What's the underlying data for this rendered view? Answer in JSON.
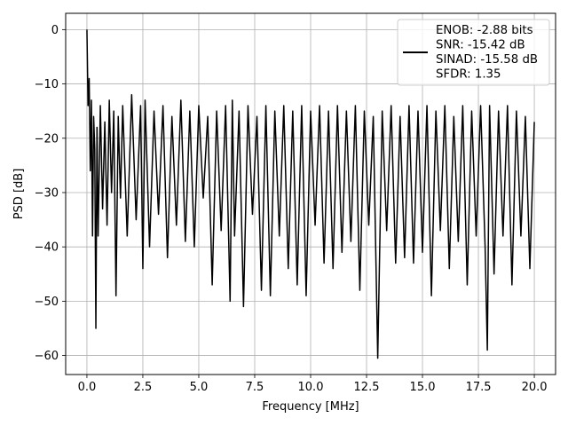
{
  "chart_data": {
    "type": "line",
    "title": "",
    "xlabel": "Frequency [MHz]",
    "ylabel": "PSD [dB]",
    "xlim": [
      -0.95,
      20.95
    ],
    "ylim": [
      -63.5,
      3.0
    ],
    "xticks": [
      0.0,
      2.5,
      5.0,
      7.5,
      10.0,
      12.5,
      15.0,
      17.5,
      20.0
    ],
    "xtick_labels": [
      "0.0",
      "2.5",
      "5.0",
      "7.5",
      "10.0",
      "12.5",
      "15.0",
      "17.5",
      "20.0"
    ],
    "yticks": [
      0,
      -10,
      -20,
      -30,
      -40,
      -50,
      -60
    ],
    "ytick_labels": [
      "0",
      "−10",
      "−20",
      "−30",
      "−40",
      "−50",
      "−60"
    ],
    "grid": true,
    "legend_position": "top-right",
    "series_color": "#000000",
    "series": [
      {
        "name": "ENOB: -2.88 bits\nSNR: -15.42 dB\nSINAD: -15.58 dB\nSFDR: 1.35",
        "legend_lines": [
          "ENOB: -2.88 bits",
          "SNR: -15.42 dB",
          "SINAD: -15.58 dB",
          "SFDR: 1.35"
        ],
        "x": [
          0.0,
          0.05,
          0.1,
          0.15,
          0.2,
          0.25,
          0.3,
          0.35,
          0.4,
          0.45,
          0.5,
          0.6,
          0.7,
          0.8,
          0.9,
          1.0,
          1.1,
          1.2,
          1.3,
          1.4,
          1.5,
          1.6,
          1.8,
          2.0,
          2.2,
          2.4,
          2.5,
          2.6,
          2.8,
          3.0,
          3.2,
          3.4,
          3.6,
          3.8,
          4.0,
          4.2,
          4.4,
          4.6,
          4.8,
          5.0,
          5.2,
          5.4,
          5.6,
          5.8,
          6.0,
          6.2,
          6.4,
          6.5,
          6.6,
          6.8,
          7.0,
          7.2,
          7.4,
          7.6,
          7.8,
          8.0,
          8.2,
          8.4,
          8.6,
          8.8,
          9.0,
          9.2,
          9.4,
          9.6,
          9.8,
          10.0,
          10.2,
          10.4,
          10.6,
          10.8,
          11.0,
          11.2,
          11.4,
          11.6,
          11.8,
          12.0,
          12.2,
          12.4,
          12.6,
          12.8,
          13.0,
          13.2,
          13.4,
          13.6,
          13.8,
          14.0,
          14.2,
          14.4,
          14.6,
          14.8,
          15.0,
          15.2,
          15.4,
          15.6,
          15.8,
          16.0,
          16.2,
          16.4,
          16.6,
          16.8,
          17.0,
          17.2,
          17.4,
          17.6,
          17.8,
          17.9,
          18.0,
          18.2,
          18.4,
          18.6,
          18.8,
          19.0,
          19.2,
          19.4,
          19.6,
          19.8,
          20.0
        ],
        "y": [
          0.0,
          -14.0,
          -9.0,
          -26.0,
          -13.0,
          -38.0,
          -16.0,
          -22.0,
          -55.0,
          -18.0,
          -38.0,
          -14.0,
          -33.0,
          -17.0,
          -36.0,
          -13.0,
          -30.0,
          -15.0,
          -49.0,
          -16.0,
          -31.0,
          -14.0,
          -38.0,
          -12.0,
          -35.0,
          -14.0,
          -44.0,
          -13.0,
          -40.0,
          -15.0,
          -34.0,
          -14.0,
          -42.0,
          -16.0,
          -36.0,
          -13.0,
          -39.0,
          -15.0,
          -40.0,
          -14.0,
          -31.0,
          -16.0,
          -47.0,
          -15.0,
          -37.0,
          -14.0,
          -50.0,
          -13.0,
          -38.0,
          -15.0,
          -51.0,
          -14.0,
          -34.0,
          -16.0,
          -48.0,
          -14.0,
          -49.0,
          -15.0,
          -38.0,
          -14.0,
          -44.0,
          -15.0,
          -47.0,
          -14.0,
          -49.0,
          -15.0,
          -36.0,
          -14.0,
          -43.0,
          -15.0,
          -44.0,
          -14.0,
          -41.0,
          -15.0,
          -39.0,
          -14.0,
          -48.0,
          -15.0,
          -36.0,
          -16.0,
          -60.5,
          -15.0,
          -37.0,
          -14.0,
          -43.0,
          -16.0,
          -42.0,
          -14.0,
          -43.0,
          -15.0,
          -41.0,
          -14.0,
          -49.0,
          -15.0,
          -37.0,
          -14.0,
          -44.0,
          -16.0,
          -39.0,
          -14.0,
          -47.0,
          -15.0,
          -38.0,
          -14.0,
          -40.0,
          -59.0,
          -14.0,
          -45.0,
          -15.0,
          -38.0,
          -14.0,
          -47.0,
          -15.0,
          -38.0,
          -16.0,
          -44.0,
          -17.0
        ]
      }
    ]
  }
}
